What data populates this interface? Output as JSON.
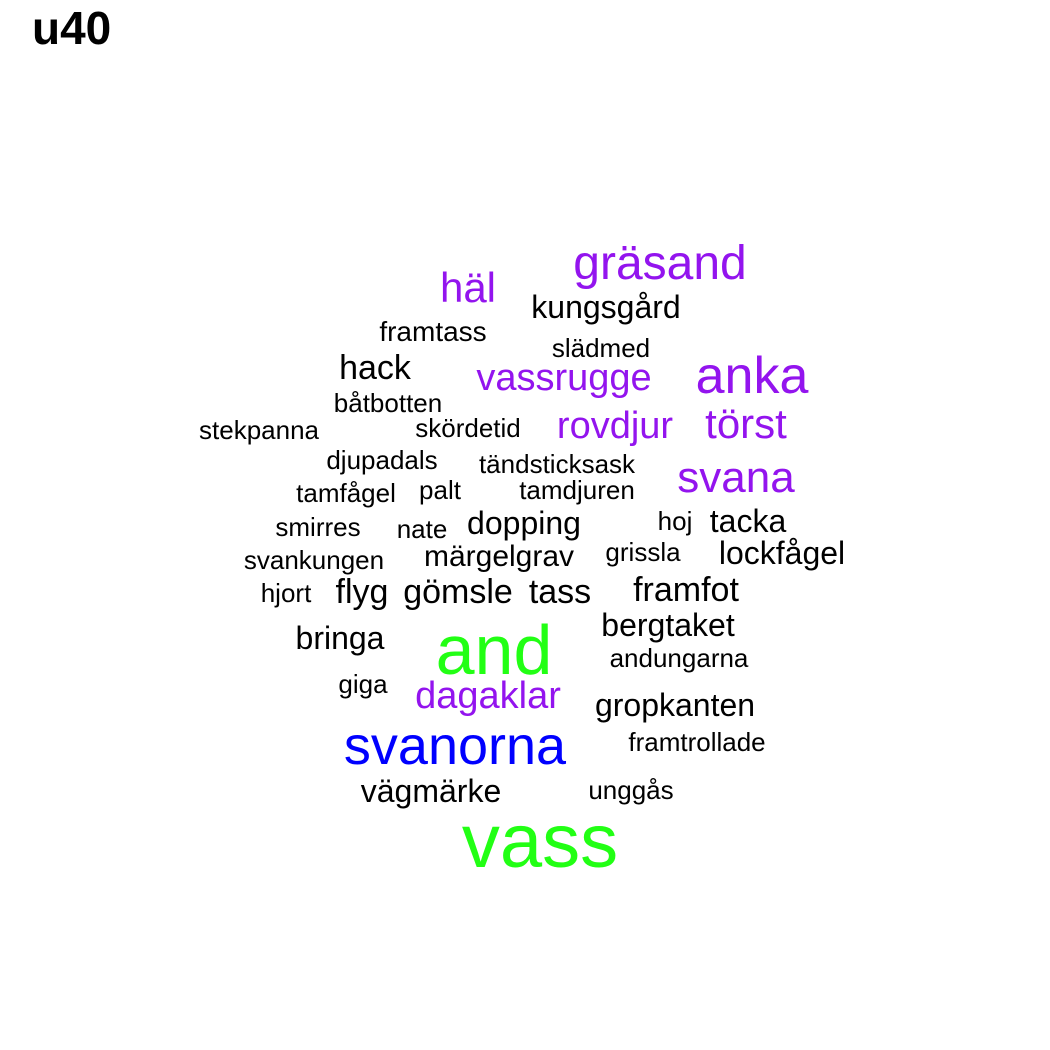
{
  "title": "u40",
  "colors": {
    "black": "#000000",
    "purple": "#9314ee",
    "green": "#22ff14",
    "blue": "#0000ff"
  },
  "words": [
    {
      "text": "vass",
      "color": "green"
    },
    {
      "text": "and",
      "color": "green"
    },
    {
      "text": "svanorna",
      "color": "blue"
    },
    {
      "text": "gräsand",
      "color": "purple"
    },
    {
      "text": "anka",
      "color": "purple"
    },
    {
      "text": "svana",
      "color": "purple"
    },
    {
      "text": "häl",
      "color": "purple"
    },
    {
      "text": "törst",
      "color": "purple"
    },
    {
      "text": "vassrugge",
      "color": "purple"
    },
    {
      "text": "rovdjur",
      "color": "purple"
    },
    {
      "text": "dagaklar",
      "color": "purple"
    },
    {
      "text": "kungsgård",
      "color": "black"
    },
    {
      "text": "framtass",
      "color": "black"
    },
    {
      "text": "slädmed",
      "color": "black"
    },
    {
      "text": "hack",
      "color": "black"
    },
    {
      "text": "båtbotten",
      "color": "black"
    },
    {
      "text": "stekpanna",
      "color": "black"
    },
    {
      "text": "skördetid",
      "color": "black"
    },
    {
      "text": "djupadals",
      "color": "black"
    },
    {
      "text": "tändsticksask",
      "color": "black"
    },
    {
      "text": "tamfågel",
      "color": "black"
    },
    {
      "text": "palt",
      "color": "black"
    },
    {
      "text": "tamdjuren",
      "color": "black"
    },
    {
      "text": "smirres",
      "color": "black"
    },
    {
      "text": "nate",
      "color": "black"
    },
    {
      "text": "dopping",
      "color": "black"
    },
    {
      "text": "hoj",
      "color": "black"
    },
    {
      "text": "tacka",
      "color": "black"
    },
    {
      "text": "svankungen",
      "color": "black"
    },
    {
      "text": "märgelgrav",
      "color": "black"
    },
    {
      "text": "grissla",
      "color": "black"
    },
    {
      "text": "lockfågel",
      "color": "black"
    },
    {
      "text": "hjort",
      "color": "black"
    },
    {
      "text": "flyg",
      "color": "black"
    },
    {
      "text": "gömsle",
      "color": "black"
    },
    {
      "text": "tass",
      "color": "black"
    },
    {
      "text": "framfot",
      "color": "black"
    },
    {
      "text": "bringa",
      "color": "black"
    },
    {
      "text": "bergtaket",
      "color": "black"
    },
    {
      "text": "andungarna",
      "color": "black"
    },
    {
      "text": "giga",
      "color": "black"
    },
    {
      "text": "gropkanten",
      "color": "black"
    },
    {
      "text": "framtrollade",
      "color": "black"
    },
    {
      "text": "vägmärke",
      "color": "black"
    },
    {
      "text": "unggås",
      "color": "black"
    }
  ]
}
